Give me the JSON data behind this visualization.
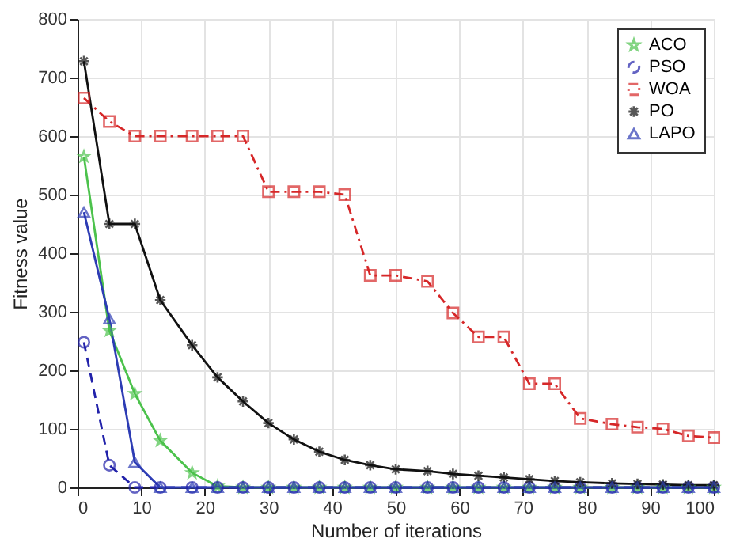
{
  "chart_data": {
    "type": "line",
    "xlabel": "Number of iterations",
    "ylabel": "Fitness value",
    "x": [
      1,
      5,
      9,
      13,
      18,
      22,
      26,
      30,
      34,
      38,
      42,
      46,
      50,
      55,
      59,
      63,
      67,
      71,
      75,
      79,
      84,
      88,
      92,
      96,
      100
    ],
    "series": [
      {
        "name": "ACO",
        "color": "#4cc24c",
        "marker": "star",
        "line_style": "solid",
        "values": [
          565,
          268,
          160,
          80,
          25,
          2,
          0,
          0,
          0,
          0,
          0,
          0,
          0,
          0,
          0,
          0,
          0,
          0,
          0,
          0,
          0,
          0,
          0,
          0,
          0
        ]
      },
      {
        "name": "PSO",
        "color": "#2222aa",
        "marker": "circle",
        "line_style": "dashed",
        "values": [
          248,
          38,
          0,
          0,
          0,
          0,
          0,
          0,
          0,
          0,
          0,
          0,
          0,
          0,
          0,
          0,
          0,
          0,
          0,
          0,
          0,
          0,
          0,
          0,
          0
        ]
      },
      {
        "name": "WOA",
        "color": "#d62728",
        "marker": "square",
        "line_style": "dashdot",
        "values": [
          665,
          625,
          600,
          600,
          600,
          600,
          600,
          505,
          505,
          505,
          500,
          362,
          362,
          352,
          298,
          257,
          257,
          177,
          177,
          118,
          108,
          103,
          100,
          88,
          85
        ]
      },
      {
        "name": "PO",
        "color": "#111111",
        "marker": "cross",
        "line_style": "solid",
        "values": [
          728,
          450,
          450,
          320,
          243,
          188,
          147,
          110,
          82,
          61,
          47,
          38,
          31,
          28,
          23,
          20,
          17,
          14,
          11,
          9,
          7,
          6,
          5,
          4,
          4
        ]
      },
      {
        "name": "LAPO",
        "color": "#2d3cb4",
        "marker": "triangle",
        "line_style": "solid",
        "values": [
          470,
          288,
          43,
          0,
          0,
          0,
          0,
          0,
          0,
          0,
          0,
          0,
          0,
          0,
          0,
          0,
          0,
          0,
          0,
          0,
          0,
          0,
          0,
          0,
          0
        ]
      }
    ],
    "xlim": [
      0,
      100
    ],
    "xticks": [
      0,
      10,
      20,
      30,
      40,
      50,
      60,
      70,
      80,
      90,
      100
    ],
    "ylim": [
      0,
      800
    ],
    "yticks": [
      0,
      100,
      200,
      300,
      400,
      500,
      600,
      700,
      800
    ],
    "grid": true,
    "legend": "top right"
  }
}
